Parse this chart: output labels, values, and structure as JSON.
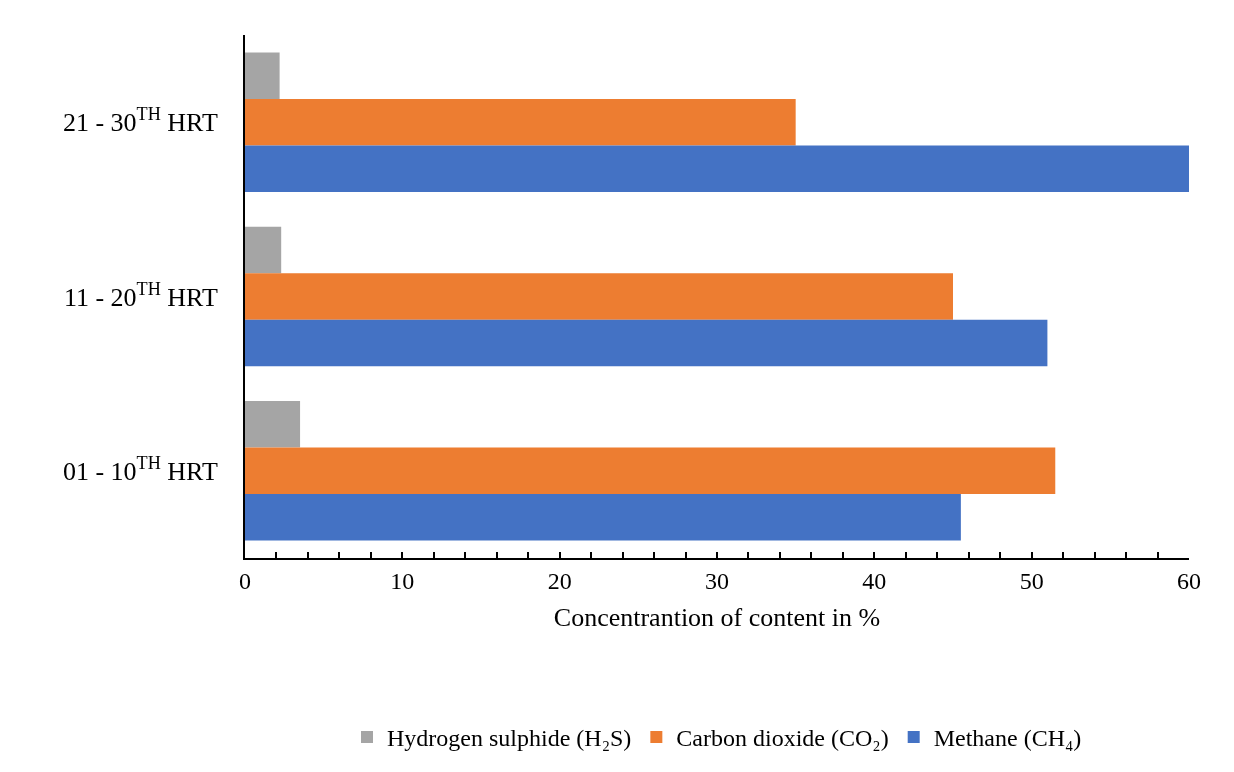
{
  "chart_data": {
    "type": "bar",
    "orientation": "horizontal",
    "xlabel": "Concentrantion of content in %",
    "categories": [
      "21 - 30$^{TH}$ HRT",
      "11 - 20$^{TH}$ HRT",
      "01 - 10$^{TH}$ HRT"
    ],
    "series": [
      {
        "name": "Hydrogen sulphide (H₂S)",
        "color": "#a5a5a5",
        "values": [
          2.2,
          2.3,
          3.5
        ]
      },
      {
        "name": "Carbon dioxide (CO₂)",
        "color": "#ed7d31",
        "values": [
          35.0,
          45.0,
          51.5
        ]
      },
      {
        "name": "Methane (CH₄)",
        "color": "#4472c4",
        "values": [
          60.0,
          51.0,
          45.5
        ]
      }
    ],
    "xlim": [
      0,
      60
    ],
    "xticks": [
      0,
      {
        "value": 2,
        "label": null
      },
      {
        "value": 4,
        "label": null
      },
      {
        "value": 6,
        "label": null
      },
      {
        "value": 8,
        "label": null
      },
      10,
      {
        "value": 12,
        "label": null
      },
      {
        "value": 14,
        "label": null
      },
      {
        "value": 16,
        "label": null
      },
      {
        "value": 18,
        "label": null
      },
      20,
      {
        "value": 22,
        "label": null
      },
      {
        "value": 24,
        "label": null
      },
      {
        "value": 26,
        "label": null
      },
      {
        "value": 28,
        "label": null
      },
      30,
      {
        "value": 32,
        "label": null
      },
      {
        "value": 34,
        "label": null
      },
      {
        "value": 36,
        "label": null
      },
      {
        "value": 38,
        "label": null
      },
      40,
      {
        "value": 42,
        "label": null
      },
      {
        "value": 44,
        "label": null
      },
      {
        "value": 46,
        "label": null
      },
      {
        "value": 48,
        "label": null
      },
      50,
      {
        "value": 52,
        "label": null
      },
      {
        "value": 54,
        "label": null
      },
      {
        "value": 56,
        "label": null
      },
      {
        "value": 58,
        "label": null
      },
      60
    ],
    "grid": false,
    "legend": "bottom"
  }
}
